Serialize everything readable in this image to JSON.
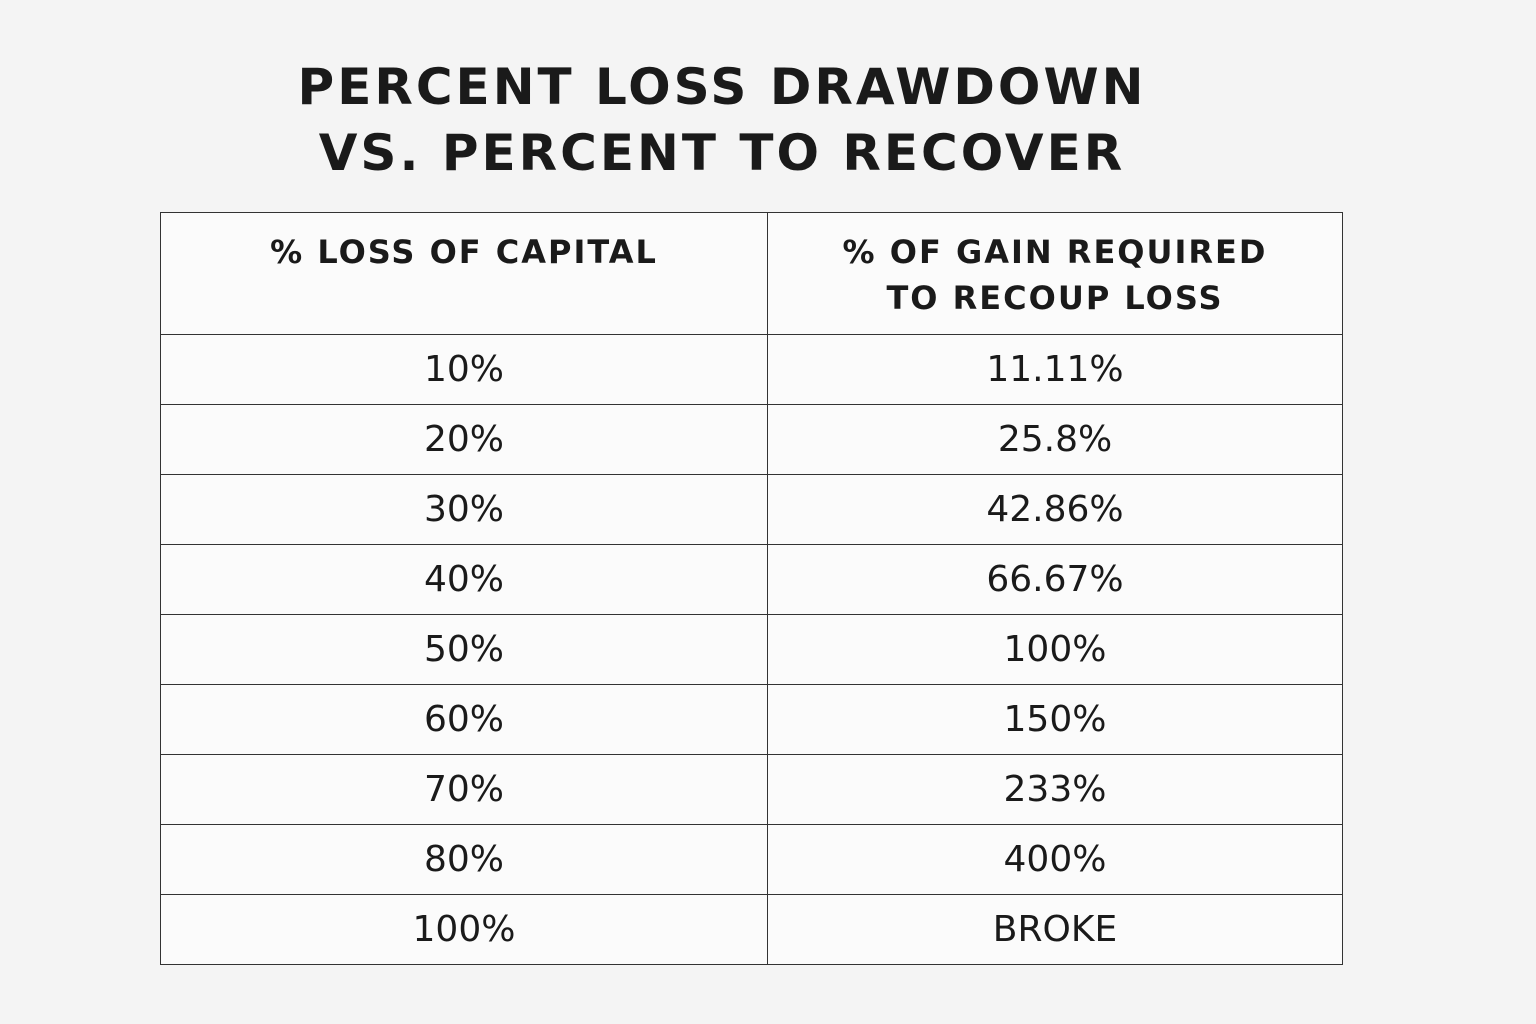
{
  "title": [
    "PERCENT LOSS DRAWDOWN",
    "VS. PERCENT TO RECOVER"
  ],
  "table": {
    "header": [
      [
        "% LOSS OF CAPITAL"
      ],
      [
        "% OF GAIN REQUIRED",
        "TO RECOUP LOSS"
      ]
    ],
    "rows": [
      [
        "10%",
        "11.11%"
      ],
      [
        "20%",
        "25.8%"
      ],
      [
        "30%",
        "42.86%"
      ],
      [
        "40%",
        "66.67%"
      ],
      [
        "50%",
        "100%"
      ],
      [
        "60%",
        "150%"
      ],
      [
        "70%",
        "233%"
      ],
      [
        "80%",
        "400%"
      ],
      [
        "100%",
        "BROKE"
      ]
    ]
  }
}
